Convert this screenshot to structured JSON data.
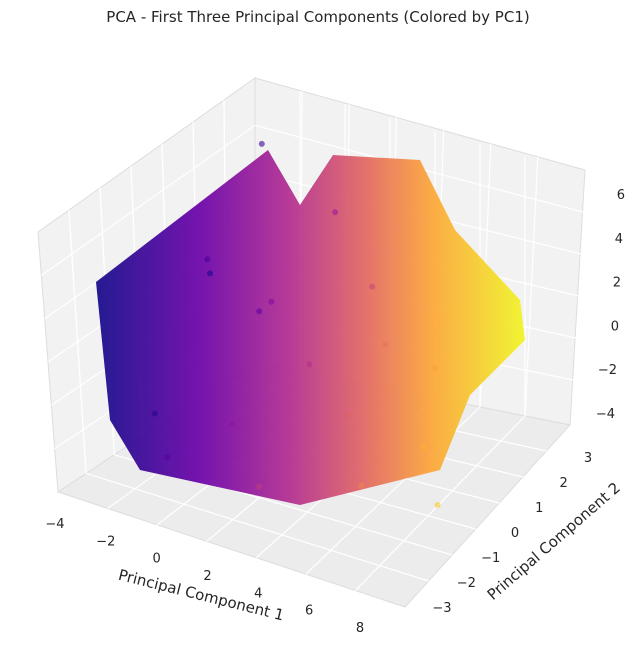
{
  "chart_data": {
    "type": "scatter",
    "projection": "3d",
    "title": "PCA - First Three Principal Components (Colored by PC1)",
    "xlabel": "Principal Component 1",
    "ylabel": "Principal Component 2",
    "zlabel": "",
    "xlim": [
      -4,
      9
    ],
    "ylim": [
      -3.6,
      3.6
    ],
    "zlim": [
      -4,
      7
    ],
    "xticks": [
      "−4",
      "−2",
      "0",
      "2",
      "4",
      "6",
      "8"
    ],
    "yticks": [
      "−3",
      "−2",
      "−1",
      "0",
      "1",
      "2",
      "3"
    ],
    "zticks": [
      "−4",
      "−2",
      "0",
      "2",
      "4",
      "6"
    ],
    "colormap": "plasma",
    "color_by": "PC1",
    "grid": true,
    "pane_color": "#f2f2f2",
    "point_color_range": [
      "#0d0887",
      "#f0f921"
    ],
    "points": [
      {
        "x": -3.5,
        "y": 1.5,
        "z": 1.0
      },
      {
        "x": -3.0,
        "y": -1.0,
        "z": -2.5
      },
      {
        "x": -2.5,
        "y": 2.5,
        "z": 5.5
      },
      {
        "x": -2.0,
        "y": 0.0,
        "z": 3.0
      },
      {
        "x": -1.5,
        "y": -2.0,
        "z": -3.0
      },
      {
        "x": -1.0,
        "y": 1.0,
        "z": 0.5
      },
      {
        "x": 0.0,
        "y": 0.5,
        "z": 1.5
      },
      {
        "x": 0.5,
        "y": -1.5,
        "z": -1.5
      },
      {
        "x": 1.0,
        "y": 2.0,
        "z": 4.0
      },
      {
        "x": 2.0,
        "y": 0.0,
        "z": 0.0
      },
      {
        "x": 2.5,
        "y": -2.5,
        "z": -2.5
      },
      {
        "x": 3.0,
        "y": 1.5,
        "z": 2.0
      },
      {
        "x": 4.0,
        "y": -0.5,
        "z": -1.0
      },
      {
        "x": 4.5,
        "y": 0.5,
        "z": 1.0
      },
      {
        "x": 5.0,
        "y": -1.0,
        "z": -3.0
      },
      {
        "x": 6.0,
        "y": 1.0,
        "z": 0.0
      },
      {
        "x": 6.5,
        "y": 0.0,
        "z": -2.0
      },
      {
        "x": 7.5,
        "y": -0.5,
        "z": -3.5
      }
    ]
  }
}
